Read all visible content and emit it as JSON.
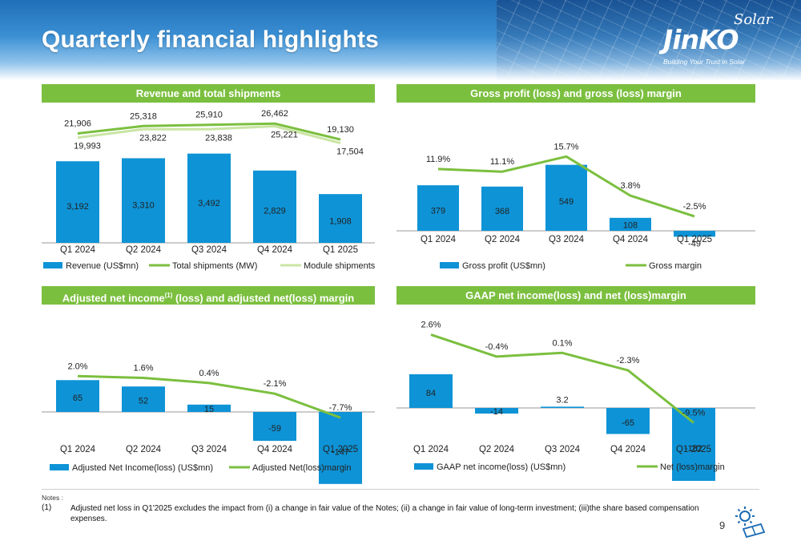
{
  "title": "Quarterly financial highlights",
  "logo": {
    "brand": "JinKO",
    "sub": "Solar",
    "tagline": "Building Your Trust in Solar"
  },
  "colors": {
    "bar": "#0e93d6",
    "line": "#7bbf3f",
    "line_light": "#c9e5a4",
    "header": "#7bbf3f"
  },
  "sections": {
    "revenue": {
      "header": "Revenue and total shipments"
    },
    "gross": {
      "header": "Gross profit (loss) and gross (loss) margin"
    },
    "adjusted": {
      "header_a": "Adjusted net income",
      "header_sup": "(1)",
      "header_b": " (loss) and adjusted net(loss) margin"
    },
    "gaap": {
      "header": "GAAP net income(loss) and net (loss)margin"
    }
  },
  "chart_data": [
    {
      "type": "bar",
      "categories": [
        "Q1 2024",
        "Q2 2024",
        "Q3 2024",
        "Q4 2024",
        "Q1 2025"
      ],
      "series": [
        {
          "name": "Revenue (US$mn)",
          "kind": "bar",
          "values": [
            3192,
            3310,
            3492,
            2829,
            1908
          ],
          "labels": [
            "3,192",
            "3,310",
            "3,492",
            "2,829",
            "1,908"
          ]
        },
        {
          "name": "Total shipments (MW)",
          "kind": "line",
          "values": [
            21906,
            25318,
            25910,
            26462,
            19130
          ],
          "labels": [
            "21,906",
            "25,318",
            "25,910",
            "26,462",
            "19,130"
          ]
        },
        {
          "name": "Module shipments",
          "kind": "line",
          "values": [
            19993,
            23822,
            23838,
            25221,
            17504
          ],
          "labels": [
            "19,993",
            "23,822",
            "23,838",
            "25,221",
            "17,504"
          ]
        }
      ]
    },
    {
      "type": "bar",
      "categories": [
        "Q1 2024",
        "Q2 2024",
        "Q3 2024",
        "Q4 2024",
        "Q1 2025"
      ],
      "series": [
        {
          "name": "Gross profit (US$mn)",
          "kind": "bar",
          "values": [
            379,
            368,
            549,
            108,
            -49
          ],
          "labels": [
            "379",
            "368",
            "549",
            "108",
            "-49"
          ]
        },
        {
          "name": "Gross margin",
          "kind": "line",
          "values": [
            11.9,
            11.1,
            15.7,
            3.8,
            -2.5
          ],
          "labels": [
            "11.9%",
            "11.1%",
            "15.7%",
            "3.8%",
            "-2.5%"
          ]
        }
      ]
    },
    {
      "type": "bar",
      "categories": [
        "Q1 2024",
        "Q2 2024",
        "Q3 2024",
        "Q4 2024",
        "Q1 2025"
      ],
      "series": [
        {
          "name": "Adjusted Net Income(loss) (US$mn)",
          "kind": "bar",
          "values": [
            65,
            52,
            15,
            -59,
            -147
          ],
          "labels": [
            "65",
            "52",
            "15",
            "-59",
            "-147"
          ]
        },
        {
          "name": "Adjusted Net(loss)margin",
          "kind": "line",
          "values": [
            2.0,
            1.6,
            0.4,
            -2.1,
            -7.7
          ],
          "labels": [
            "2.0%",
            "1.6%",
            "0.4%",
            "-2.1%",
            "-7.7%"
          ]
        }
      ]
    },
    {
      "type": "bar",
      "categories": [
        "Q1 2024",
        "Q2 2024",
        "Q3 2024",
        "Q4 2024",
        "Q1 2025"
      ],
      "series": [
        {
          "name": "GAAP net income(loss) (US$mn)",
          "kind": "bar",
          "values": [
            84,
            -14,
            3.2,
            -65,
            -182
          ],
          "labels": [
            "84",
            "-14",
            "3.2",
            "-65",
            "-182"
          ]
        },
        {
          "name": "Net (loss)margin",
          "kind": "line",
          "values": [
            2.6,
            -0.4,
            0.1,
            -2.3,
            -9.5
          ],
          "labels": [
            "2.6%",
            "-0.4%",
            "0.1%",
            "-2.3%",
            "-9.5%"
          ]
        }
      ]
    }
  ],
  "notes": {
    "label": "Notes :",
    "marker": "(1)",
    "text": "Adjusted net loss in Q1'2025 excludes the impact from (i) a change in fair value of the Notes; (ii) a change in fair value of long-term investment; (iii)the share based compensation expenses."
  },
  "page_number": "9"
}
